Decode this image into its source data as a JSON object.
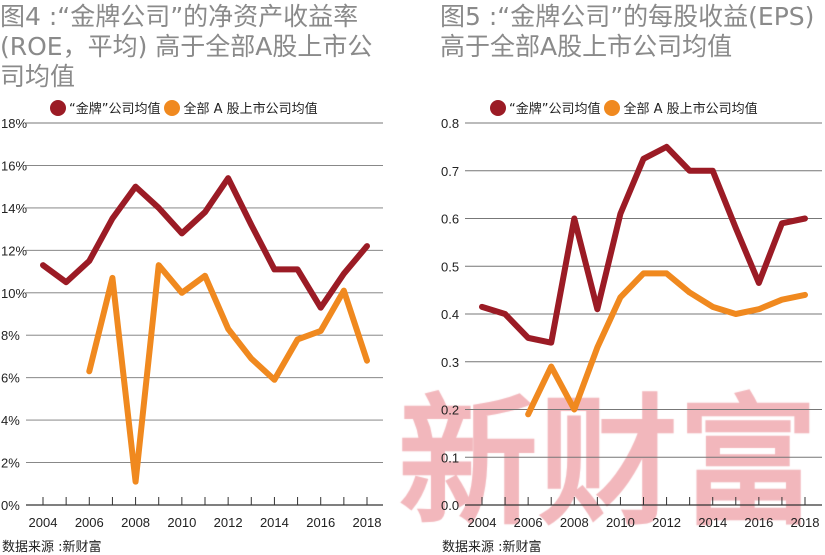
{
  "watermark": "新财富",
  "colors": {
    "golden": "#9b1b25",
    "all": "#f0891f"
  },
  "chart_data": [
    {
      "type": "line",
      "title": "图4 :“金牌公司”的净资产收益率(ROE，平均) 高于全部A股上市公司均值",
      "source": "数据来源 :新财富",
      "x": [
        2004,
        2005,
        2006,
        2007,
        2008,
        2009,
        2010,
        2011,
        2012,
        2013,
        2014,
        2015,
        2016,
        2017,
        2018
      ],
      "xticks": [
        "2004",
        "2006",
        "2008",
        "2010",
        "2012",
        "2014",
        "2016",
        "2018"
      ],
      "yticks": [
        "0%",
        "2%",
        "4%",
        "6%",
        "8%",
        "10%",
        "12%",
        "14%",
        "16%",
        "18%"
      ],
      "ylim": [
        0,
        18
      ],
      "grid": true,
      "legend": "top",
      "series": [
        {
          "name": "“金牌”公司均值",
          "values": [
            11.3,
            10.5,
            11.5,
            13.5,
            15.0,
            14.0,
            12.8,
            13.8,
            15.4,
            13.2,
            11.1,
            11.1,
            9.3,
            10.9,
            12.2
          ]
        },
        {
          "name": "全部 A 股上市公司均值",
          "values": [
            null,
            null,
            6.3,
            10.7,
            1.1,
            11.3,
            10.0,
            10.8,
            8.3,
            6.9,
            5.9,
            7.8,
            8.2,
            10.1,
            6.8
          ]
        }
      ]
    },
    {
      "type": "line",
      "title": "图5 :“金牌公司”的每股收益(EPS)高于全部A股上市公司均值",
      "source": "数据来源 :新财富",
      "x": [
        2004,
        2005,
        2006,
        2007,
        2008,
        2009,
        2010,
        2011,
        2012,
        2013,
        2014,
        2015,
        2016,
        2017,
        2018
      ],
      "xticks": [
        "2004",
        "2006",
        "2008",
        "2010",
        "2012",
        "2014",
        "2016",
        "2018"
      ],
      "yticks": [
        "0.0",
        "0.1",
        "0.2",
        "0.3",
        "0.4",
        "0.5",
        "0.6",
        "0.7",
        "0.8"
      ],
      "ylim": [
        0,
        0.8
      ],
      "grid": true,
      "legend": "top",
      "series": [
        {
          "name": "“金牌”公司均值",
          "values": [
            0.415,
            0.4,
            0.35,
            0.34,
            0.6,
            0.41,
            0.61,
            0.725,
            0.75,
            0.7,
            0.7,
            0.58,
            0.465,
            0.59,
            0.6
          ]
        },
        {
          "name": "全部 A 股上市公司均值",
          "values": [
            null,
            null,
            0.19,
            0.29,
            0.2,
            0.33,
            0.435,
            0.485,
            0.485,
            0.445,
            0.415,
            0.4,
            0.41,
            0.43,
            0.44
          ]
        }
      ]
    }
  ]
}
